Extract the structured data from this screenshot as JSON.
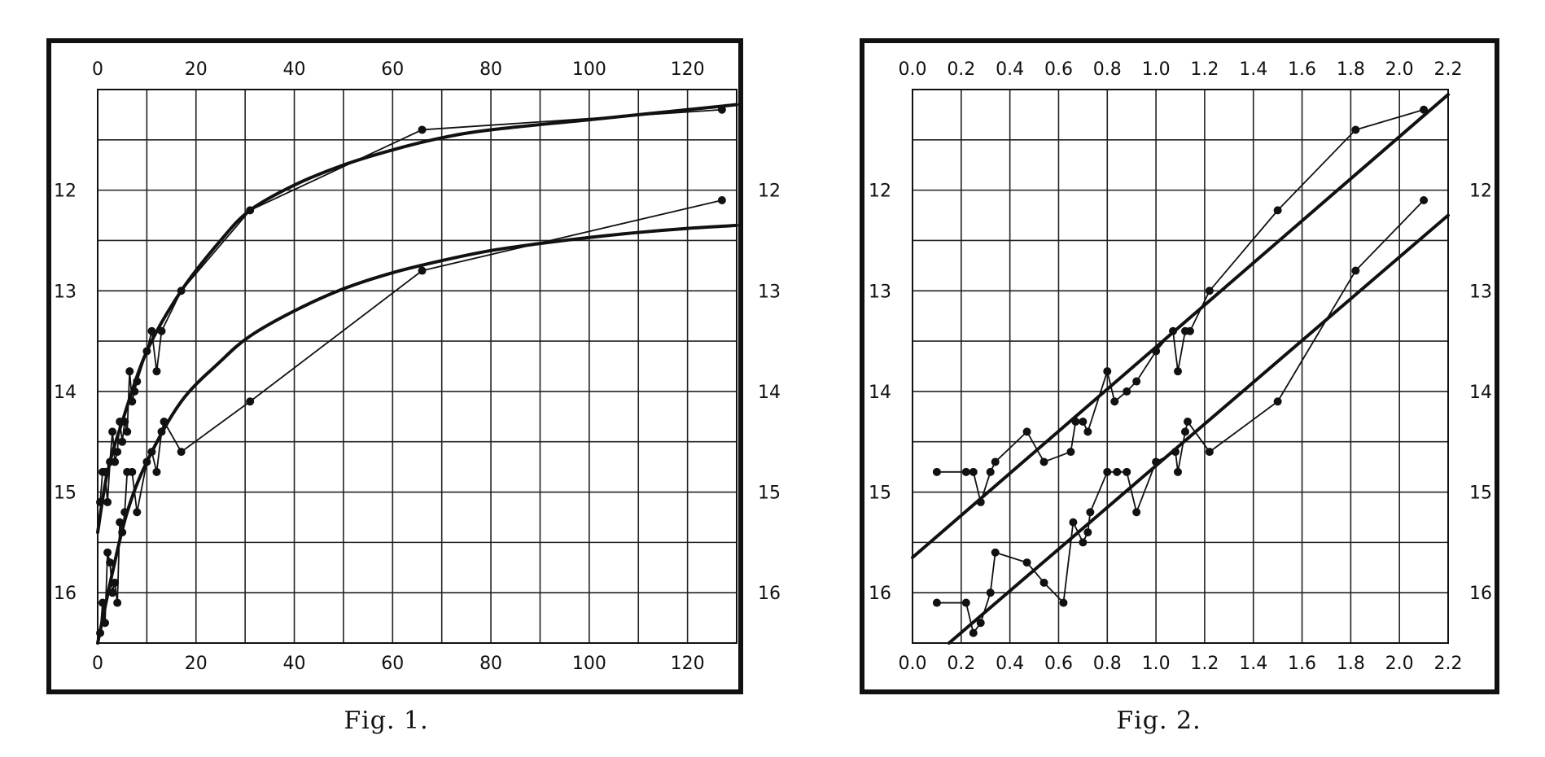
{
  "chart_data": [
    {
      "type": "line",
      "caption": "Fig. 1.",
      "xlim": [
        0,
        130
      ],
      "ylim": [
        11,
        16.5
      ],
      "y_inverted": true,
      "grid": true,
      "x_ticks": [
        0,
        20,
        40,
        60,
        80,
        100,
        120
      ],
      "x_tick_labels": [
        "0",
        "20",
        "40",
        "60",
        "80",
        "100",
        "120"
      ],
      "y_ticks": [
        12,
        13,
        14,
        15,
        16
      ],
      "y_tick_labels": [
        "12",
        "13",
        "14",
        "15",
        "16"
      ],
      "series": [
        {
          "style": "observed",
          "points": [
            [
              0.5,
              15.1
            ],
            [
              1,
              14.8
            ],
            [
              1.5,
              14.8
            ],
            [
              2,
              15.1
            ],
            [
              2.5,
              14.7
            ],
            [
              3,
              14.4
            ],
            [
              3.5,
              14.7
            ],
            [
              4,
              14.6
            ],
            [
              4.5,
              14.3
            ],
            [
              5,
              14.5
            ],
            [
              5.5,
              14.3
            ],
            [
              6,
              14.4
            ],
            [
              6.5,
              13.8
            ],
            [
              7,
              14.1
            ],
            [
              7.5,
              14.0
            ],
            [
              8,
              13.9
            ],
            [
              10,
              13.6
            ],
            [
              11,
              13.4
            ],
            [
              12,
              13.8
            ],
            [
              13,
              13.4
            ],
            [
              17,
              13.0
            ],
            [
              31,
              12.2
            ],
            [
              66,
              11.4
            ],
            [
              127,
              11.2
            ]
          ]
        },
        {
          "style": "fitted",
          "points": [
            [
              0,
              15.4
            ],
            [
              2,
              14.8
            ],
            [
              5,
              14.3
            ],
            [
              10,
              13.6
            ],
            [
              17,
              13.0
            ],
            [
              25,
              12.5
            ],
            [
              31,
              12.2
            ],
            [
              40,
              11.95
            ],
            [
              50,
              11.75
            ],
            [
              60,
              11.6
            ],
            [
              70,
              11.48
            ],
            [
              80,
              11.4
            ],
            [
              100,
              11.3
            ],
            [
              120,
              11.2
            ],
            [
              130,
              11.15
            ]
          ]
        },
        {
          "style": "observed",
          "points": [
            [
              0.5,
              16.4
            ],
            [
              1,
              16.1
            ],
            [
              1.5,
              16.3
            ],
            [
              2,
              15.6
            ],
            [
              2.5,
              15.7
            ],
            [
              3,
              16.0
            ],
            [
              3.5,
              15.9
            ],
            [
              4,
              16.1
            ],
            [
              4.5,
              15.3
            ],
            [
              5,
              15.4
            ],
            [
              5.5,
              15.2
            ],
            [
              6,
              14.8
            ],
            [
              7,
              14.8
            ],
            [
              8,
              15.2
            ],
            [
              10,
              14.7
            ],
            [
              11,
              14.6
            ],
            [
              12,
              14.8
            ],
            [
              13,
              14.4
            ],
            [
              13.5,
              14.3
            ],
            [
              17,
              14.6
            ],
            [
              31,
              14.1
            ],
            [
              66,
              12.8
            ],
            [
              127,
              12.1
            ]
          ]
        },
        {
          "style": "fitted",
          "points": [
            [
              0,
              16.5
            ],
            [
              3,
              15.8
            ],
            [
              6,
              15.2
            ],
            [
              10,
              14.7
            ],
            [
              17,
              14.1
            ],
            [
              25,
              13.7
            ],
            [
              31,
              13.45
            ],
            [
              40,
              13.2
            ],
            [
              50,
              12.98
            ],
            [
              60,
              12.82
            ],
            [
              70,
              12.7
            ],
            [
              80,
              12.6
            ],
            [
              90,
              12.53
            ],
            [
              100,
              12.47
            ],
            [
              110,
              12.42
            ],
            [
              120,
              12.38
            ],
            [
              130,
              12.35
            ]
          ]
        }
      ]
    },
    {
      "type": "line",
      "caption": "Fig. 2.",
      "xlim": [
        0,
        2.2
      ],
      "ylim": [
        11,
        16.5
      ],
      "y_inverted": true,
      "grid": true,
      "x_ticks": [
        0,
        0.2,
        0.4,
        0.6,
        0.8,
        1.0,
        1.2,
        1.4,
        1.6,
        1.8,
        2.0,
        2.2
      ],
      "x_tick_labels": [
        "0.0",
        "0.2",
        "0.4",
        "0.6",
        "0.8",
        "1.0",
        "1.2",
        "1.4",
        "1.6",
        "1.8",
        "2.0",
        "2.2"
      ],
      "y_ticks": [
        12,
        13,
        14,
        15,
        16
      ],
      "y_tick_labels": [
        "12",
        "13",
        "14",
        "15",
        "16"
      ],
      "series": [
        {
          "style": "observed",
          "points": [
            [
              0.1,
              14.8
            ],
            [
              0.22,
              14.8
            ],
            [
              0.25,
              14.8
            ],
            [
              0.28,
              15.1
            ],
            [
              0.32,
              14.8
            ],
            [
              0.34,
              14.7
            ],
            [
              0.47,
              14.4
            ],
            [
              0.54,
              14.7
            ],
            [
              0.65,
              14.6
            ],
            [
              0.67,
              14.3
            ],
            [
              0.7,
              14.3
            ],
            [
              0.72,
              14.4
            ],
            [
              0.8,
              13.8
            ],
            [
              0.83,
              14.1
            ],
            [
              0.88,
              14.0
            ],
            [
              0.92,
              13.9
            ],
            [
              1.0,
              13.6
            ],
            [
              1.07,
              13.4
            ],
            [
              1.09,
              13.8
            ],
            [
              1.12,
              13.4
            ],
            [
              1.14,
              13.4
            ],
            [
              1.22,
              13.0
            ],
            [
              1.5,
              12.2
            ],
            [
              1.82,
              11.4
            ],
            [
              2.1,
              11.2
            ]
          ]
        },
        {
          "style": "fitted",
          "points": [
            [
              0,
              15.65
            ],
            [
              2.2,
              11.05
            ]
          ]
        },
        {
          "style": "observed",
          "points": [
            [
              0.1,
              16.1
            ],
            [
              0.22,
              16.1
            ],
            [
              0.25,
              16.4
            ],
            [
              0.28,
              16.3
            ],
            [
              0.32,
              16.0
            ],
            [
              0.34,
              15.6
            ],
            [
              0.47,
              15.7
            ],
            [
              0.54,
              15.9
            ],
            [
              0.62,
              16.1
            ],
            [
              0.66,
              15.3
            ],
            [
              0.7,
              15.5
            ],
            [
              0.72,
              15.4
            ],
            [
              0.73,
              15.2
            ],
            [
              0.8,
              14.8
            ],
            [
              0.84,
              14.8
            ],
            [
              0.88,
              14.8
            ],
            [
              0.92,
              15.2
            ],
            [
              1.0,
              14.7
            ],
            [
              1.08,
              14.6
            ],
            [
              1.09,
              14.8
            ],
            [
              1.12,
              14.4
            ],
            [
              1.13,
              14.3
            ],
            [
              1.22,
              14.6
            ],
            [
              1.5,
              14.1
            ],
            [
              1.82,
              12.8
            ],
            [
              2.1,
              12.1
            ]
          ]
        },
        {
          "style": "fitted",
          "points": [
            [
              0.15,
              16.5
            ],
            [
              2.2,
              12.25
            ]
          ]
        }
      ]
    }
  ]
}
